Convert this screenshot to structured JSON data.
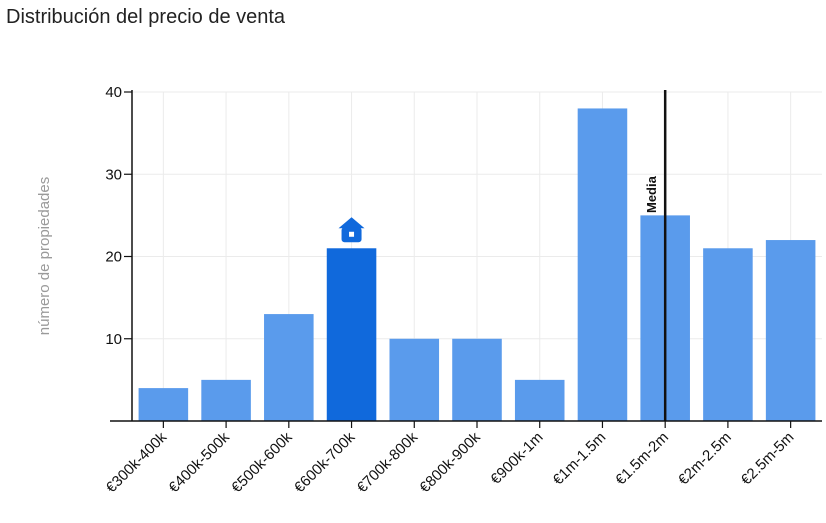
{
  "chart_data": {
    "type": "bar",
    "title": "Distribución del precio de venta",
    "ylabel": "número de propiedades",
    "xlabel": "",
    "categories": [
      "€300k-400k",
      "€400k-500k",
      "€500k-600k",
      "€600k-700k",
      "€700k-800k",
      "€800k-900k",
      "€900k-1m",
      "€1m-1.5m",
      "€1.5m-2m",
      "€2m-2.5m",
      "€2.5m-5m"
    ],
    "values": [
      4,
      5,
      13,
      21,
      10,
      10,
      5,
      38,
      25,
      21,
      22
    ],
    "ylim": [
      0,
      40
    ],
    "yticks": [
      10,
      20,
      30,
      40
    ],
    "grid": true,
    "highlight_index": 3,
    "highlight_marker": "house-icon",
    "mean_line": {
      "category_index": 8,
      "label": "Media"
    },
    "colors": {
      "bar": "#5a9bec",
      "highlight": "#1069dc",
      "grid": "#ebebeb",
      "axis": "#111111",
      "mean_line": "#111111"
    }
  }
}
